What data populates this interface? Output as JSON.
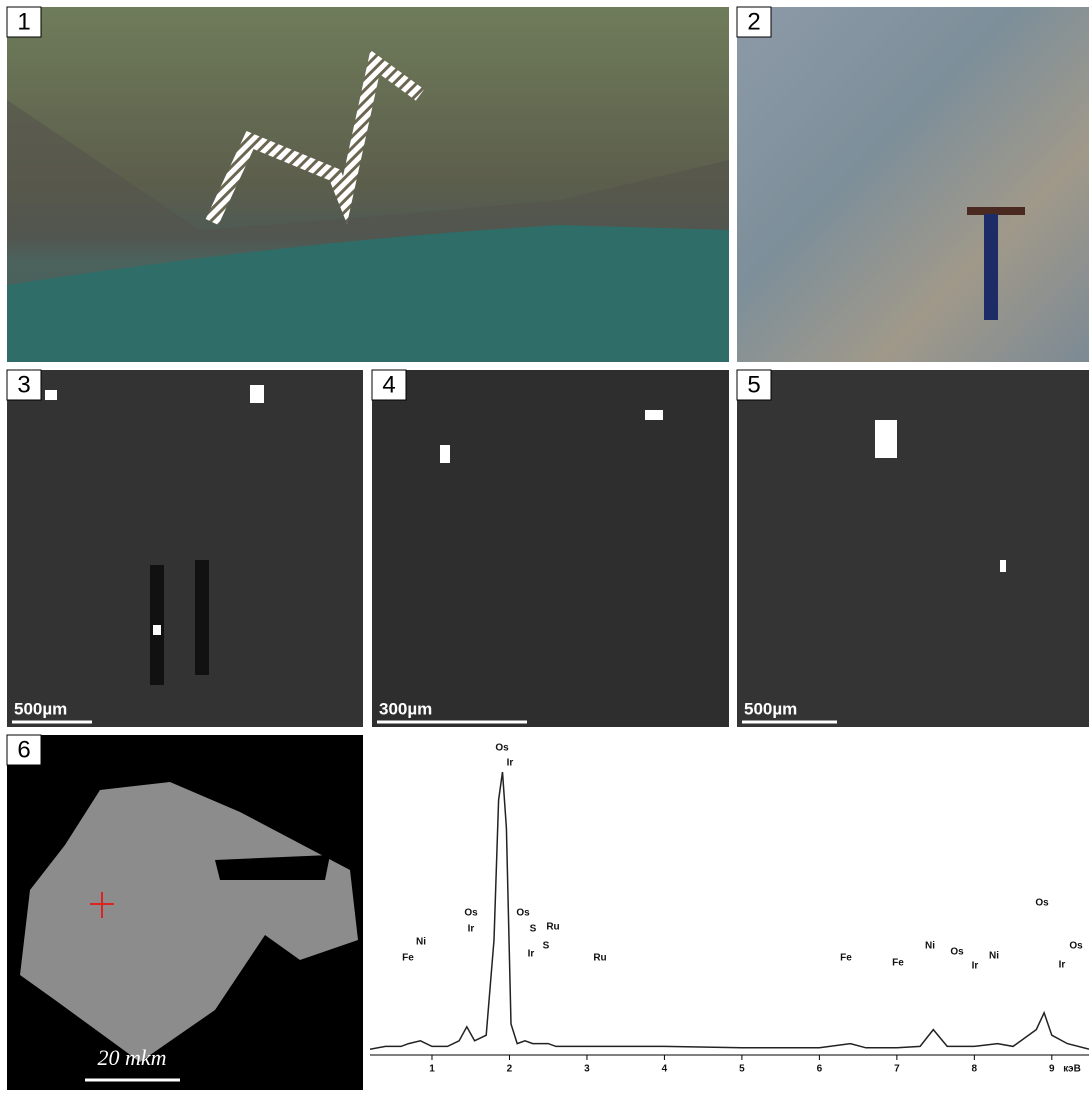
{
  "panels": {
    "labels": [
      "1",
      "2",
      "3",
      "4",
      "5",
      "6"
    ],
    "scale_bars": [
      "500µm",
      "300µm",
      "500µm",
      "20 mkm"
    ]
  },
  "chart_data": {
    "type": "line",
    "x_unit": "кэВ",
    "x": [
      0.2,
      0.4,
      0.6,
      0.7,
      0.85,
      1.0,
      1.2,
      1.35,
      1.45,
      1.55,
      1.7,
      1.8,
      1.86,
      1.91,
      1.96,
      2.02,
      2.1,
      2.2,
      2.3,
      2.5,
      2.6,
      3,
      4,
      5,
      6,
      6.4,
      6.6,
      7,
      7.3,
      7.47,
      7.65,
      8,
      8.3,
      8.5,
      8.8,
      8.9,
      9.0,
      9.2,
      9.48
    ],
    "values": [
      1,
      2,
      2,
      3,
      4,
      2,
      2,
      4,
      9,
      4,
      6,
      40,
      90,
      100,
      80,
      10,
      3,
      4,
      3,
      3,
      2,
      2,
      2,
      1.5,
      1.5,
      3,
      1.5,
      1.5,
      2,
      8,
      2,
      2,
      3,
      2,
      8,
      14,
      6,
      3,
      1
    ],
    "color": "#222222",
    "xlim": [
      0.2,
      9.48
    ],
    "ylim": [
      0,
      100
    ],
    "xticks": [
      1,
      2,
      3,
      4,
      5,
      6,
      7,
      8,
      9
    ],
    "peak_labels": [
      "Os",
      "Ir",
      "Fe",
      "Ni",
      "Os",
      "Ir",
      "Os",
      "S",
      "Ir",
      "Ru",
      "S",
      "Ru",
      "Fe",
      "Fe",
      "Ni",
      "Os",
      "Ir",
      "Ni",
      "Os",
      "Ir",
      "Os"
    ]
  }
}
